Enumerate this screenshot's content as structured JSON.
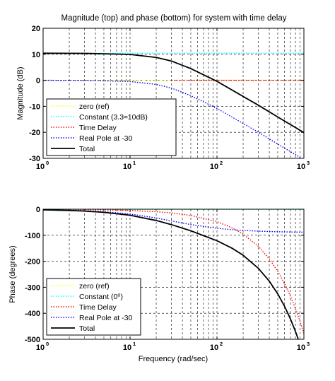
{
  "chart_data": [
    {
      "type": "line",
      "title": "Magnitude (top) and phase (bottom) for system with time delay",
      "xlabel": "",
      "ylabel": "Magnitude (dB)",
      "xscale": "log",
      "xlim": [
        1,
        1000
      ],
      "ylim": [
        -30,
        20
      ],
      "x_ticks": [
        "10",
        "10",
        "10",
        "10"
      ],
      "x_tick_exponents": [
        "0",
        "1",
        "2",
        "3"
      ],
      "y_ticks": [
        "20",
        "10",
        "0",
        "-10",
        "-20",
        "-30"
      ],
      "y_tick_values": [
        20,
        10,
        0,
        -10,
        -20,
        -30
      ],
      "grid": true,
      "legend_position": "bottom-left",
      "series": [
        {
          "name": "zero (ref)",
          "color": "#ffff00",
          "style": "dotted",
          "x": [
            1,
            1000
          ],
          "y": [
            0,
            0
          ]
        },
        {
          "name": "Constant (3.3≈10dB)",
          "color": "#00ffff",
          "style": "dotted",
          "x": [
            1,
            1000
          ],
          "y": [
            10.4,
            10.4
          ]
        },
        {
          "name": "Time Delay",
          "color": "#ff0000",
          "style": "dotted",
          "x": [
            30,
            1000
          ],
          "y": [
            0,
            0
          ]
        },
        {
          "name": "Real Pole at -30",
          "color": "#0000ff",
          "style": "dotted",
          "x": [
            1,
            3,
            10,
            20,
            30,
            50,
            100,
            200,
            300,
            500,
            1000
          ],
          "y": [
            0,
            -0.04,
            -0.46,
            -1.6,
            -3.0,
            -5.9,
            -10.8,
            -16.6,
            -20.0,
            -24.5,
            -30.5
          ]
        },
        {
          "name": "Total",
          "color": "#000000",
          "style": "solid",
          "x": [
            1,
            3,
            10,
            20,
            30,
            50,
            100,
            200,
            300,
            500,
            1000
          ],
          "y": [
            10.4,
            10.36,
            9.94,
            8.8,
            7.4,
            4.5,
            -0.4,
            -6.2,
            -9.6,
            -14.1,
            -20.1
          ]
        }
      ]
    },
    {
      "type": "line",
      "title": "",
      "xlabel": "Frequency (rad/sec)",
      "ylabel": "Phase (degrees)",
      "xscale": "log",
      "xlim": [
        1,
        1000
      ],
      "ylim": [
        -500,
        0
      ],
      "x_ticks": [
        "10",
        "10",
        "10",
        "10"
      ],
      "x_tick_exponents": [
        "0",
        "1",
        "2",
        "3"
      ],
      "y_ticks": [
        "0",
        "-100",
        "-200",
        "-300",
        "-400",
        "-500"
      ],
      "y_tick_values": [
        0,
        -100,
        -200,
        -300,
        -400,
        -500
      ],
      "grid": true,
      "legend_position": "bottom-left",
      "series": [
        {
          "name": "zero (ref)",
          "color": "#ffff00",
          "style": "dotted",
          "x": [
            1,
            1000
          ],
          "y": [
            0,
            0
          ]
        },
        {
          "name": "Constant (0⁰)",
          "color": "#00ffff",
          "style": "dotted",
          "x": [
            1,
            1000
          ],
          "y": [
            0,
            0
          ]
        },
        {
          "name": "Time Delay",
          "color": "#ff0000",
          "style": "dotted",
          "x": [
            1,
            2,
            3,
            5,
            10,
            20,
            30,
            50,
            100,
            150,
            200,
            300,
            400,
            500,
            600,
            700,
            800,
            900,
            1000
          ],
          "y": [
            -0.5,
            -1,
            -1.5,
            -2.4,
            -4.8,
            -9.6,
            -14.3,
            -23.9,
            -47.7,
            -71.6,
            -95.5,
            -143.2,
            -191,
            -238.7,
            -286.5,
            -334.2,
            -382,
            -429.7,
            -477.5
          ]
        },
        {
          "name": "Real Pole at -30",
          "color": "#0000ff",
          "style": "dotted",
          "x": [
            1,
            2,
            3,
            5,
            10,
            20,
            30,
            50,
            100,
            150,
            200,
            300,
            400,
            500,
            600,
            700,
            800,
            900,
            1000
          ],
          "y": [
            -1.9,
            -3.8,
            -5.7,
            -9.5,
            -18.4,
            -33.7,
            -45,
            -59,
            -73.3,
            -78.7,
            -81.5,
            -84.3,
            -85.7,
            -86.6,
            -87.1,
            -87.5,
            -87.9,
            -88.1,
            -88.3
          ]
        },
        {
          "name": "Total",
          "color": "#000000",
          "style": "solid",
          "x": [
            1,
            2,
            3,
            5,
            10,
            20,
            30,
            50,
            100,
            150,
            200,
            300,
            400,
            500,
            600,
            700,
            800,
            900,
            1000
          ],
          "y": [
            -2.4,
            -4.8,
            -7.2,
            -11.9,
            -23.2,
            -43.3,
            -59.3,
            -82.9,
            -121,
            -150.3,
            -177,
            -227.5,
            -276.7,
            -325.3,
            -373.6,
            -421.7,
            -469.9,
            -517.8,
            -565.8
          ]
        }
      ]
    }
  ]
}
